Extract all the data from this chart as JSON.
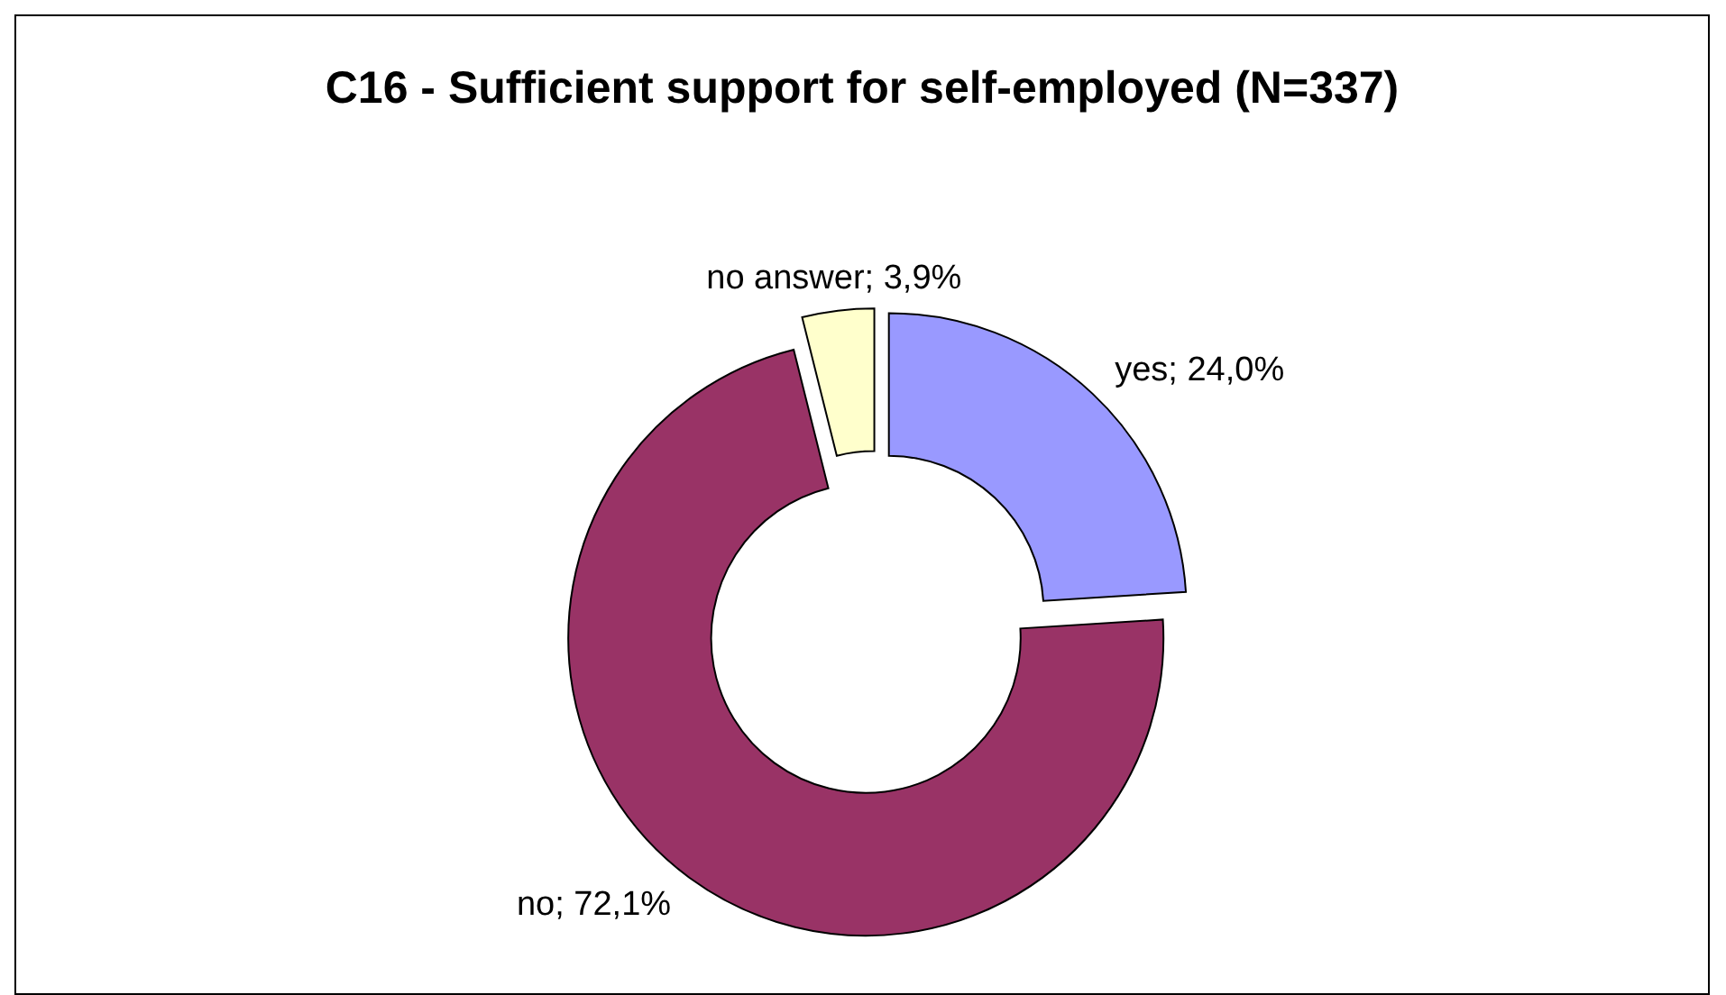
{
  "chart_data": {
    "type": "donut",
    "title": "C16 - Sufficient support for self-employed (N=337)",
    "categories": [
      "yes",
      "no",
      "no answer"
    ],
    "values": [
      24.0,
      72.1,
      3.9
    ],
    "value_labels": [
      "24,0%",
      "72,1%",
      "3,9%"
    ],
    "colors": [
      "#9999ff",
      "#993366",
      "#ffffcc"
    ],
    "legend": false
  }
}
